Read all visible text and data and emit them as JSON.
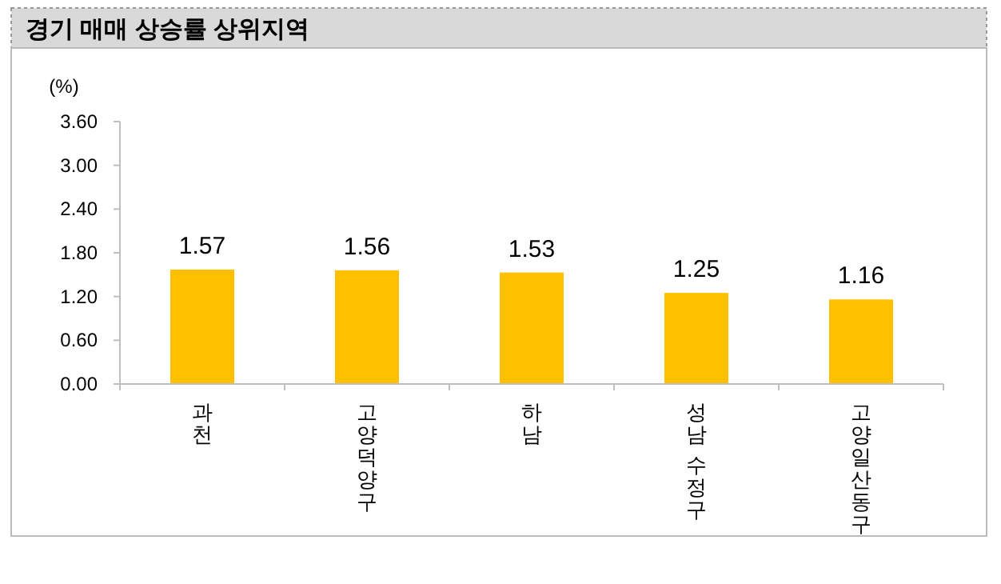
{
  "chart_data": {
    "type": "bar",
    "title": "경기 매매 상승률 상위지역",
    "ylabel": "(%)",
    "categories": [
      "과천",
      "고양덕양구",
      "하남",
      "성남 수정구",
      "고양일산동구"
    ],
    "values": [
      1.57,
      1.56,
      1.53,
      1.25,
      1.16
    ],
    "color": "#ffc000",
    "data_labels": true,
    "ylim": [
      0,
      3.6
    ],
    "yticks": [
      {
        "value": 0,
        "label": "0.00"
      },
      {
        "value": 0.6,
        "label": "0.60"
      },
      {
        "value": 1.2,
        "label": "1.20"
      },
      {
        "value": 1.8,
        "label": "1.80"
      },
      {
        "value": 2.4,
        "label": "2.40"
      },
      {
        "value": 3.0,
        "label": "3.00"
      },
      {
        "value": 3.6,
        "label": "3.60"
      }
    ]
  }
}
